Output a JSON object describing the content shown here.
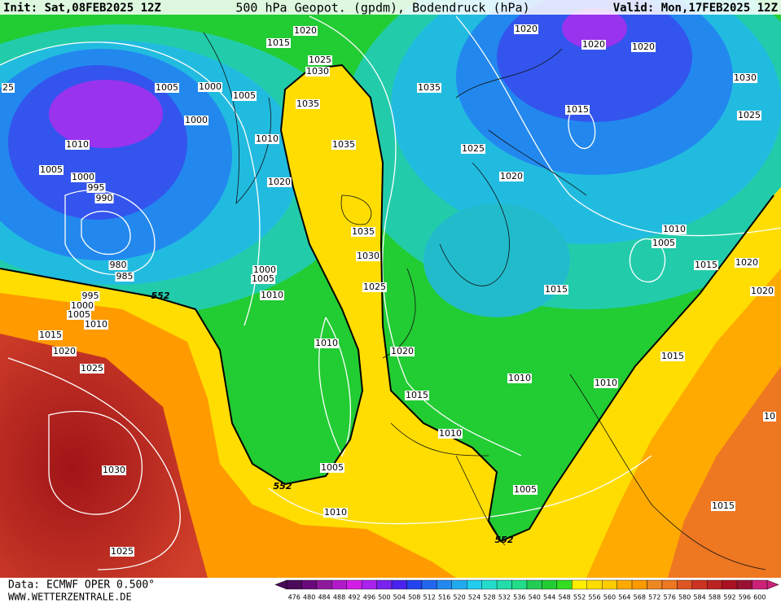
{
  "header": {
    "init": "Init: Sat,08FEB2025 12Z",
    "title": "500 hPa Geopot. (gpdm), Bodendruck (hPa)",
    "valid": "Valid: Mon,17FEB2025 12Z"
  },
  "footer": {
    "data": "Data: ECMWF OPER 0.500°",
    "site": "WWW.WETTERZENTRALE.DE"
  },
  "isobar_labels": [
    "1020",
    "1015",
    "1025",
    "1030",
    "1035",
    "1035",
    "1035",
    "1005",
    "1000",
    "1005",
    "1000",
    "1010",
    "1020",
    "1010",
    "1005",
    "1000",
    "995",
    "990",
    "980",
    "985",
    "1000",
    "1005",
    "1010",
    "995",
    "1000",
    "1005",
    "1010",
    "1015",
    "1020",
    "1025",
    "1030",
    "1025",
    "1035",
    "1030",
    "1025",
    "1010",
    "1020",
    "1015",
    "1010",
    "1005",
    "1010",
    "1020",
    "1020",
    "1020",
    "1030",
    "1015",
    "1025",
    "1025",
    "1020",
    "1010",
    "1005",
    "1015",
    "1020",
    "1020",
    "1015",
    "1010",
    "1010",
    "1015",
    "1005",
    "1015",
    "25",
    "10"
  ],
  "contour_labels": [
    "552",
    "552",
    "552"
  ],
  "colorbar": {
    "ticks": [
      476,
      480,
      484,
      488,
      492,
      496,
      500,
      504,
      508,
      512,
      516,
      520,
      524,
      528,
      532,
      536,
      540,
      544,
      548,
      552,
      556,
      560,
      564,
      568,
      572,
      576,
      580,
      584,
      588,
      592,
      596,
      600
    ],
    "colors": [
      "#4b0a5a",
      "#6a0a7a",
      "#8c1a9a",
      "#b01ac8",
      "#d21ee6",
      "#aa22ee",
      "#7a22ee",
      "#4a22ee",
      "#2244ee",
      "#2266ee",
      "#2288ee",
      "#22aaee",
      "#22ccee",
      "#22ddcc",
      "#22ddaa",
      "#22dd88",
      "#22cc55",
      "#22cc33",
      "#33dd22",
      "#ffee00",
      "#ffdd00",
      "#ffcc00",
      "#ffaa00",
      "#ff9900",
      "#ee8822",
      "#ee7722",
      "#dd5522",
      "#cc3322",
      "#bb2222",
      "#aa1122",
      "#991133",
      "#cc2277"
    ]
  }
}
